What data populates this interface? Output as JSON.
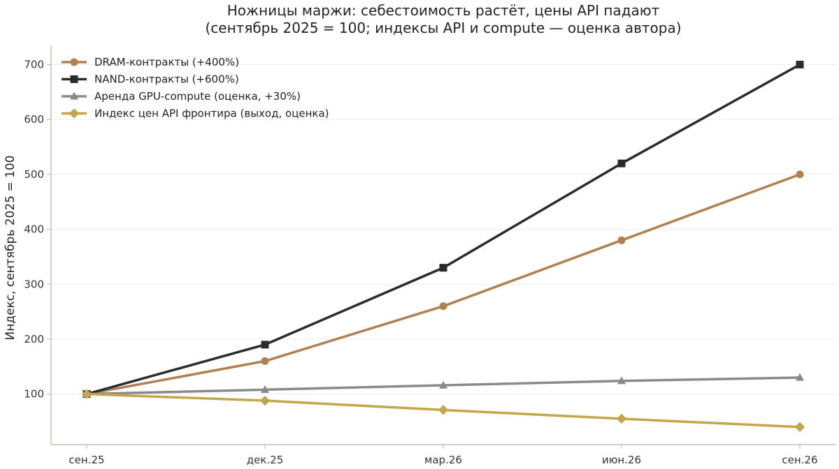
{
  "chart_data": {
    "type": "line",
    "title": "Ножницы маржи: себестоимость растёт, цены API падают",
    "subtitle": "(сентябрь 2025 = 100; индексы API и compute — оценка автора)",
    "xlabel": "",
    "ylabel": "Индекс, сентябрь 2025 = 100",
    "categories": [
      "сен.25",
      "дек.25",
      "мар.26",
      "июн.26",
      "сен.26"
    ],
    "ylim": [
      8,
      735
    ],
    "yticks": [
      100,
      200,
      300,
      400,
      500,
      600,
      700
    ],
    "grid": "horizontal",
    "legend_position": "top-left",
    "series": [
      {
        "name": "DRAM-контракты (+400%)",
        "values": [
          100,
          160,
          260,
          380,
          500
        ],
        "color": "#b08050",
        "marker": "circle"
      },
      {
        "name": "NAND-контракты (+600%)",
        "values": [
          100,
          190,
          330,
          520,
          700
        ],
        "color": "#2b2b2b",
        "marker": "square"
      },
      {
        "name": "Аренда GPU-compute (оценка, +30%)",
        "values": [
          100,
          108,
          116,
          124,
          130
        ],
        "color": "#8a8a8a",
        "marker": "triangle"
      },
      {
        "name": "Индекс цен API фронтира (выход, оценка)",
        "values": [
          100,
          88,
          71,
          55,
          40
        ],
        "color": "#c4a64a",
        "marker": "diamond"
      }
    ]
  }
}
